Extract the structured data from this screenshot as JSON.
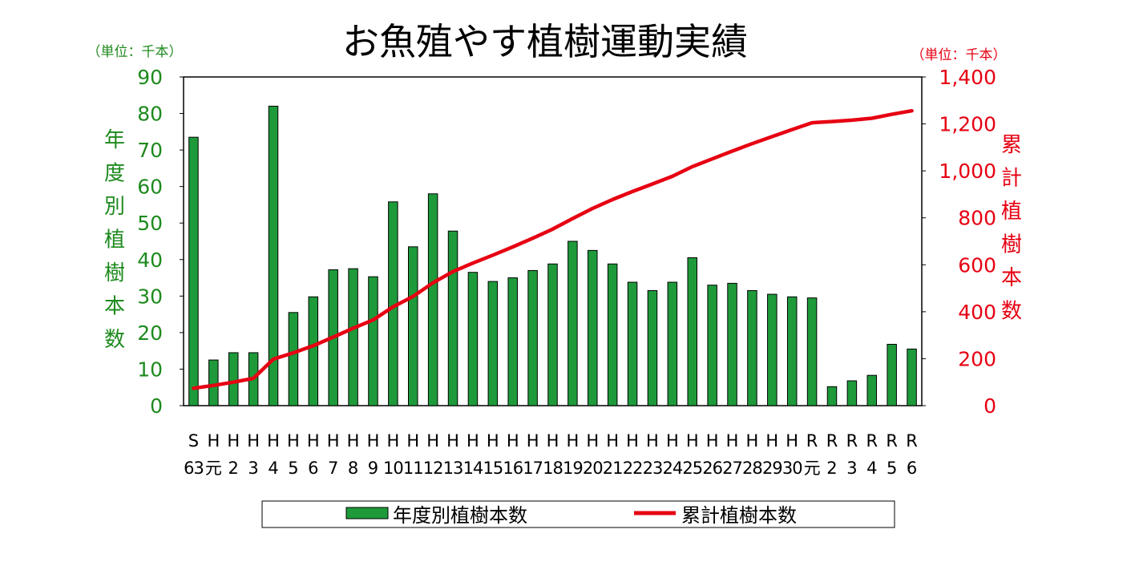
{
  "chart_data": {
    "type": "bar",
    "title": "お魚殖やす植樹運動実績",
    "unit_left": "（単位：千本）",
    "unit_right": "（単位：千本）",
    "ylabel_left": "年度別植樹本数",
    "ylabel_right": "累計植樹本数",
    "ylim_left": [
      0,
      90
    ],
    "ylim_right": [
      0,
      1400
    ],
    "yticks_left": [
      "0",
      "10",
      "20",
      "30",
      "40",
      "50",
      "60",
      "70",
      "80",
      "90"
    ],
    "yticks_right": [
      "0",
      "200",
      "400",
      "600",
      "800",
      "1,000",
      "1,200",
      "1,400"
    ],
    "categories": [
      {
        "top": "S",
        "bottom": "63"
      },
      {
        "top": "H",
        "bottom": "元"
      },
      {
        "top": "H",
        "bottom": "2"
      },
      {
        "top": "H",
        "bottom": "3"
      },
      {
        "top": "H",
        "bottom": "4"
      },
      {
        "top": "H",
        "bottom": "5"
      },
      {
        "top": "H",
        "bottom": "6"
      },
      {
        "top": "H",
        "bottom": "7"
      },
      {
        "top": "H",
        "bottom": "8"
      },
      {
        "top": "H",
        "bottom": "9"
      },
      {
        "top": "H",
        "bottom": "10"
      },
      {
        "top": "H",
        "bottom": "11"
      },
      {
        "top": "H",
        "bottom": "12"
      },
      {
        "top": "H",
        "bottom": "13"
      },
      {
        "top": "H",
        "bottom": "14"
      },
      {
        "top": "H",
        "bottom": "15"
      },
      {
        "top": "H",
        "bottom": "16"
      },
      {
        "top": "H",
        "bottom": "17"
      },
      {
        "top": "H",
        "bottom": "18"
      },
      {
        "top": "H",
        "bottom": "19"
      },
      {
        "top": "H",
        "bottom": "20"
      },
      {
        "top": "H",
        "bottom": "21"
      },
      {
        "top": "H",
        "bottom": "22"
      },
      {
        "top": "H",
        "bottom": "23"
      },
      {
        "top": "H",
        "bottom": "24"
      },
      {
        "top": "H",
        "bottom": "25"
      },
      {
        "top": "H",
        "bottom": "26"
      },
      {
        "top": "H",
        "bottom": "27"
      },
      {
        "top": "H",
        "bottom": "28"
      },
      {
        "top": "H",
        "bottom": "29"
      },
      {
        "top": "H",
        "bottom": "30"
      },
      {
        "top": "R",
        "bottom": "元"
      },
      {
        "top": "R",
        "bottom": "2"
      },
      {
        "top": "R",
        "bottom": "3"
      },
      {
        "top": "R",
        "bottom": "4"
      },
      {
        "top": "R",
        "bottom": "5"
      },
      {
        "top": "R",
        "bottom": "6"
      }
    ],
    "series": [
      {
        "name": "年度別植樹本数",
        "type": "bar",
        "axis": "left",
        "color": "#1e9a3a",
        "values": [
          73.5,
          12.5,
          14.5,
          14.5,
          82,
          25.5,
          29.8,
          37.2,
          37.5,
          35.3,
          55.8,
          43.5,
          58,
          47.8,
          36.5,
          34,
          35,
          37,
          38.8,
          45,
          42.5,
          38.8,
          33.8,
          31.5,
          33.8,
          40.5,
          33,
          33.5,
          31.5,
          30.5,
          29.8,
          29.5,
          5.2,
          6.8,
          8.3,
          16.8,
          15.5
        ]
      },
      {
        "name": "累計植樹本数",
        "type": "line",
        "axis": "right",
        "color": "#e60012",
        "values": [
          74,
          86,
          100,
          116,
          198,
          225,
          255,
          292,
          330,
          365,
          421,
          465,
          523,
          571,
          607,
          641,
          676,
          713,
          752,
          797,
          840,
          878,
          912,
          944,
          977,
          1018,
          1051,
          1084,
          1116,
          1146,
          1176,
          1205,
          1210,
          1216,
          1224,
          1241,
          1256
        ]
      }
    ],
    "legend_position": "bottom",
    "grid": false
  }
}
